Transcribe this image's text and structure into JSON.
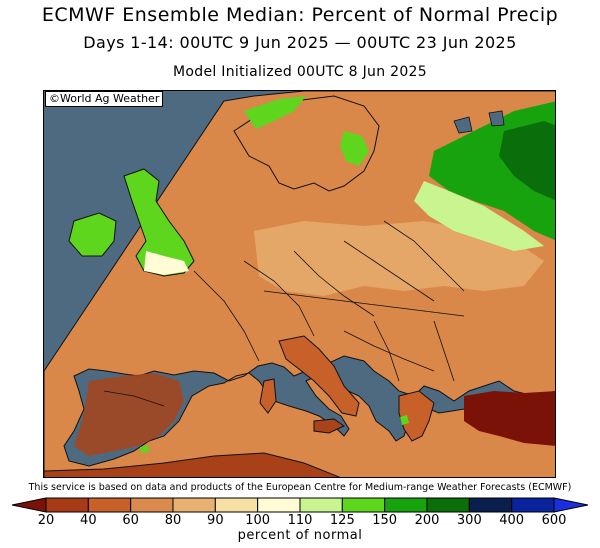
{
  "header": {
    "title": "ECMWF Ensemble Median: Percent of Normal Precip",
    "period": "Days 1-14: 00UTC 9 Jun 2025 — 00UTC 23 Jun 2025",
    "initialized": "Model Initialized 00UTC 8 Jun 2025"
  },
  "map": {
    "credit": "©World Ag Weather",
    "region": "Europe",
    "sea_color": "#4d6a80",
    "land_base_color": "#d9884a"
  },
  "footer": {
    "service_note": "This service is based on data and products of the European Centre for Medium-range Weather Forecasts (ECMWF)",
    "units_label": "percent of normal"
  },
  "colorbar": {
    "ticks": [
      "20",
      "40",
      "60",
      "80",
      "90",
      "100",
      "110",
      "125",
      "150",
      "200",
      "300",
      "400",
      "600"
    ],
    "bins": [
      {
        "color": "#7a1208"
      },
      {
        "color": "#a83b16"
      },
      {
        "color": "#c8602a"
      },
      {
        "color": "#d98a4c"
      },
      {
        "color": "#e7b271"
      },
      {
        "color": "#f6e0a6"
      },
      {
        "color": "#fffcd6"
      },
      {
        "color": "#c9f590"
      },
      {
        "color": "#5ed61e"
      },
      {
        "color": "#17a30d"
      },
      {
        "color": "#0a6e0a"
      },
      {
        "color": "#09204f"
      },
      {
        "color": "#08239c"
      },
      {
        "color": "#1a2fe0"
      }
    ]
  }
}
